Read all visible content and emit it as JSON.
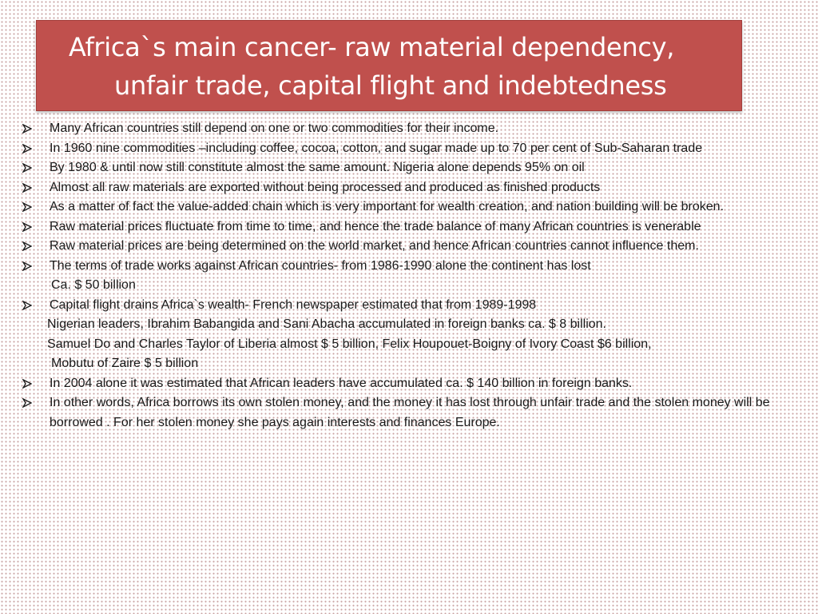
{
  "title": {
    "line1": "Africa`s main cancer- raw material  dependency,",
    "line2": "unfair trade, capital flight   and  indebtedness"
  },
  "items": [
    {
      "type": "bullet",
      "text": "Many African countries still depend on one or two commodities for their income."
    },
    {
      "type": "bullet",
      "text": "In 1960 nine commodities –including coffee, cocoa, cotton, and sugar made up to 70 per cent of  Sub-Saharan trade"
    },
    {
      "type": "bullet",
      "text": "By 1980 & until now still constitute almost the same amount. Nigeria alone depends 95% on oil"
    },
    {
      "type": "bullet",
      "text": "Almost all raw materials are exported without being processed and produced as finished products"
    },
    {
      "type": "bullet",
      "text": "As a matter of fact the value-added chain which is very important for wealth creation, and nation building will be broken."
    },
    {
      "type": "bullet",
      "text": "Raw material prices fluctuate from time to time, and hence the trade balance of many African countries is venerable"
    },
    {
      "type": "bullet",
      "text": "Raw material prices are being determined on the world market, and hence African countries cannot influence them."
    },
    {
      "type": "bullet",
      "text": "The terms of trade works against African countries- from 1986-1990 alone the continent has lost"
    },
    {
      "type": "text",
      "text": "Ca. $ 50 billion"
    },
    {
      "type": "bullet",
      "text": "Capital flight drains Africa`s wealth- French newspaper estimated that from 1989-1998"
    },
    {
      "type": "text",
      "text": "Nigerian leaders, Ibrahim Babangida and Sani Abacha accumulated in foreign banks ca. $ 8 billion."
    },
    {
      "type": "text",
      "text": "Samuel Do and Charles Taylor of Liberia almost $ 5 billion, Felix Houpouet-Boigny of Ivory Coast $6 billion,"
    },
    {
      "type": "text",
      "text": "Mobutu of Zaire $ 5 billion"
    },
    {
      "type": "bullet",
      "text": "In 2004 alone it was estimated that African leaders have accumulated ca. $ 140 billion in foreign banks."
    },
    {
      "type": "bullet",
      "text": "In other words, Africa borrows its own stolen money, and the money it has lost through unfair trade and the stolen money will be borrowed . For her stolen money she pays again interests and finances Europe."
    }
  ],
  "colors": {
    "title_bg": "#c0504d",
    "title_text": "#ffffff",
    "body_text": "#1a1a1a",
    "background_dots": "#c9a3a3"
  },
  "icons": {
    "bullet": "arrowhead-bullet-icon"
  }
}
